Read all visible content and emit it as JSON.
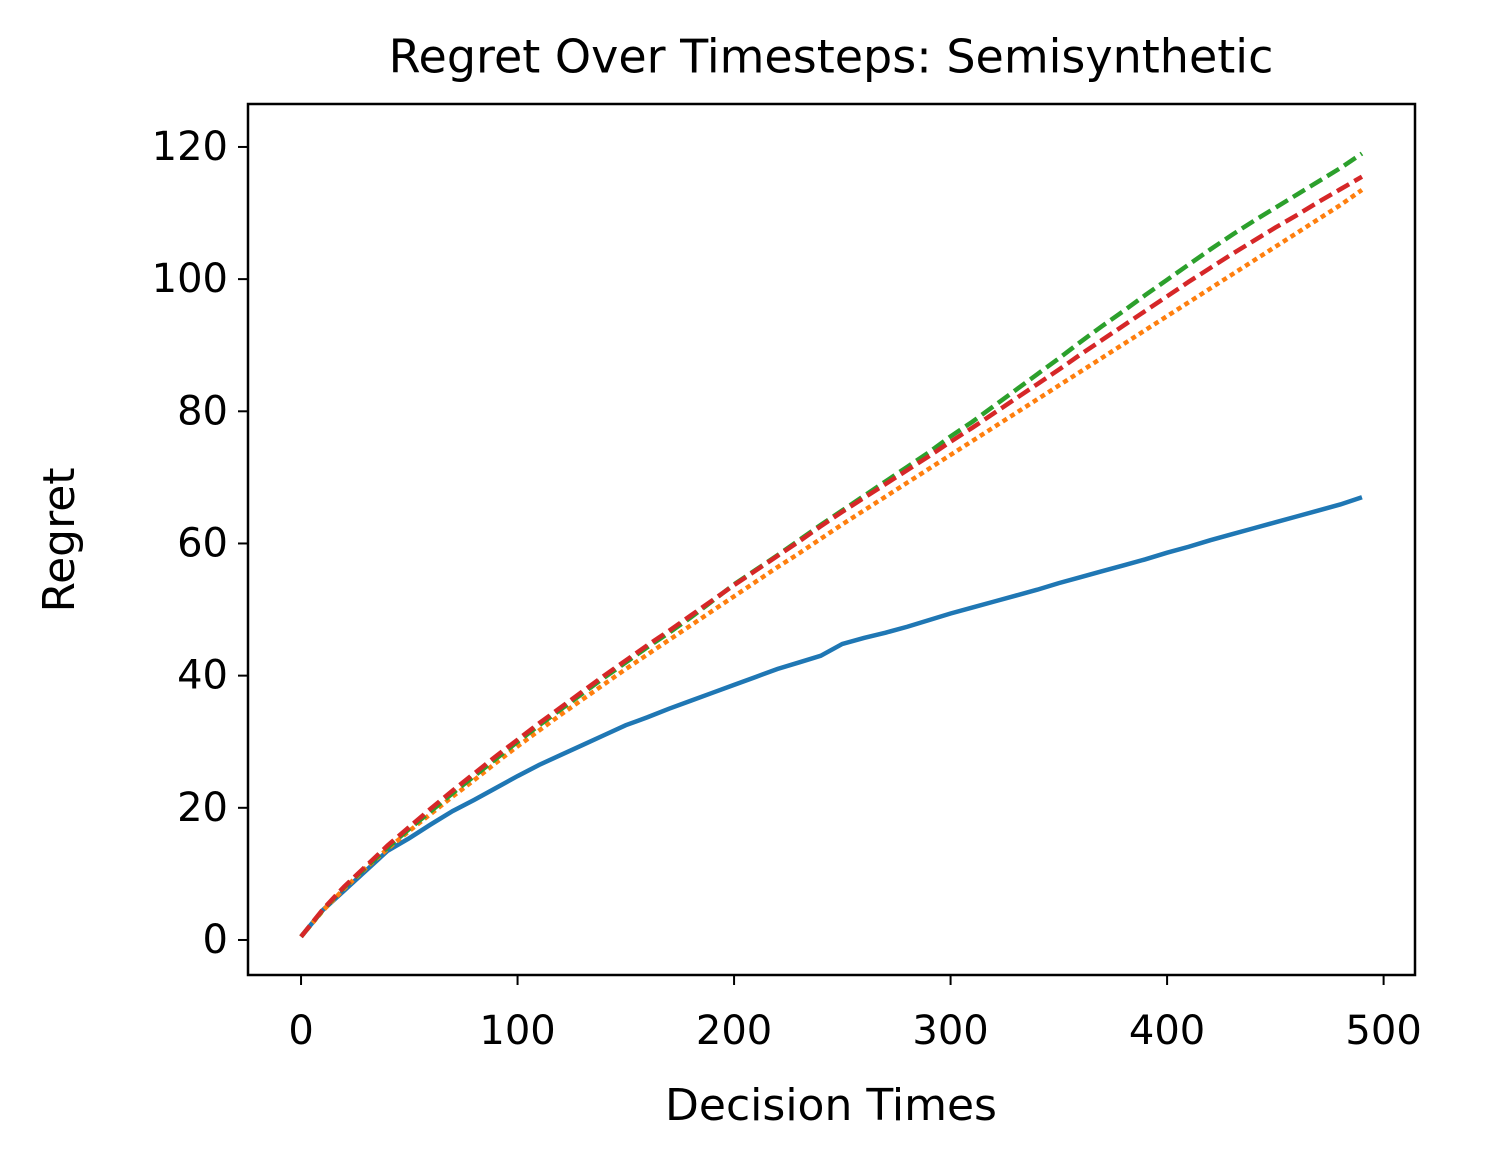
{
  "chart_data": {
    "type": "line",
    "title": "Regret Over Timesteps: Semisynthetic",
    "xlabel": "Decision Times",
    "ylabel": "Regret",
    "x": [
      0,
      10,
      20,
      30,
      40,
      50,
      60,
      70,
      80,
      90,
      100,
      110,
      120,
      130,
      140,
      150,
      160,
      170,
      180,
      190,
      200,
      210,
      220,
      230,
      240,
      250,
      260,
      270,
      280,
      290,
      300,
      310,
      320,
      330,
      340,
      350,
      360,
      370,
      380,
      390,
      400,
      410,
      420,
      430,
      440,
      450,
      460,
      470,
      480,
      490
    ],
    "series": [
      {
        "color": "#1f77b4",
        "linestyle": "solid",
        "values": [
          0.5,
          4.5,
          7.5,
          10.5,
          13.5,
          15.4,
          17.5,
          19.5,
          21.2,
          23,
          24.8,
          26.5,
          28,
          29.5,
          31,
          32.5,
          33.7,
          35,
          36.2,
          37.4,
          38.6,
          39.8,
          41,
          42,
          43,
          44.8,
          45.7,
          46.5,
          47.4,
          48.4,
          49.4,
          50.3,
          51.2,
          52.1,
          53,
          54,
          54.9,
          55.8,
          56.7,
          57.6,
          58.6,
          59.5,
          60.5,
          61.4,
          62.3,
          63.2,
          64.1,
          65,
          65.9,
          67
        ]
      },
      {
        "color": "#ff7f0e",
        "linestyle": "dotted",
        "values": [
          0.5,
          4.4,
          7.8,
          10.9,
          13.8,
          16.5,
          19.1,
          21.7,
          24.2,
          26.8,
          29.3,
          31.7,
          34.1,
          36.4,
          38.7,
          41,
          43.2,
          45.4,
          47.6,
          49.8,
          52,
          54.2,
          56.4,
          58.5,
          60.7,
          62.9,
          65,
          67.1,
          69.2,
          71.3,
          73.4,
          75.5,
          77.6,
          79.7,
          81.8,
          83.9,
          86,
          88.1,
          90.2,
          92.3,
          94.4,
          96.5,
          98.6,
          100.7,
          102.8,
          104.9,
          107,
          109.1,
          111.2,
          113.5
        ]
      },
      {
        "color": "#2ca02c",
        "linestyle": "dashed",
        "values": [
          0.5,
          4.5,
          8,
          11,
          14,
          16.8,
          19.5,
          22.2,
          24.8,
          27.4,
          30,
          32.5,
          34.9,
          37.3,
          39.7,
          42,
          44.3,
          46.5,
          48.8,
          51.3,
          53.8,
          56,
          58.2,
          60.5,
          62.8,
          65,
          67.2,
          69.4,
          71.6,
          73.8,
          76.2,
          78.4,
          80.8,
          83.2,
          85.6,
          88,
          90.5,
          92.9,
          95.2,
          97.6,
          99.9,
          102.2,
          104.5,
          106.7,
          108.8,
          110.8,
          112.8,
          114.8,
          116.8,
          119
        ]
      },
      {
        "color": "#d62728",
        "linestyle": "dashed",
        "values": [
          0.5,
          4.6,
          8.1,
          11.2,
          14.3,
          17.1,
          19.9,
          22.6,
          25.2,
          27.8,
          30.3,
          32.8,
          35.2,
          37.6,
          40,
          42.3,
          44.6,
          46.8,
          49.1,
          51.4,
          53.7,
          55.9,
          58.1,
          60.3,
          62.6,
          64.8,
          66.9,
          69,
          71.1,
          73.2,
          75.4,
          77.5,
          79.7,
          81.9,
          84.1,
          86.3,
          88.6,
          90.8,
          93,
          95.2,
          97.4,
          99.6,
          101.7,
          103.8,
          105.8,
          107.8,
          109.7,
          111.7,
          113.6,
          115.5
        ]
      }
    ],
    "xlim": [
      -24.5,
      514.5
    ],
    "xticks": [
      0,
      100,
      200,
      300,
      400,
      500
    ],
    "ylim": [
      -5.3,
      126.5
    ],
    "yticks": [
      0,
      20,
      40,
      60,
      80,
      100,
      120
    ],
    "grid": false
  }
}
